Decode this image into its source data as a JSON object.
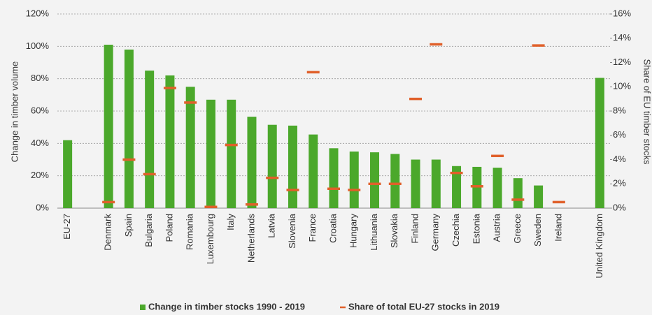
{
  "chart_data": {
    "type": "bar_marker",
    "y_label": "Change in timber volume",
    "y2_label": "Share of EU timber stocks",
    "categories": [
      "EU-27",
      null,
      "Denmark",
      "Spain",
      "Bulgaria",
      "Poland",
      "Romania",
      "Luxembourg",
      "Italy",
      "Netherlands",
      "Latvia",
      "Slovenia",
      "France",
      "Croatia",
      "Hungary",
      "Lithuania",
      "Slovakia",
      "Finland",
      "Germany",
      "Czechia",
      "Estonia",
      "Austria",
      "Greece",
      "Sweden",
      "Ireland",
      null,
      "United Kingdom"
    ],
    "series": [
      {
        "name": "Change in timber stocks 1990 - 2019",
        "color": "#4ba82b",
        "values": [
          42,
          null,
          101,
          98,
          85,
          82,
          75,
          67,
          67,
          56.5,
          51.5,
          51,
          45.5,
          37,
          35,
          34.5,
          33.5,
          30,
          30,
          26,
          25.5,
          25,
          18.5,
          14,
          null,
          null,
          80.5
        ]
      },
      {
        "name": "Share of total EU-27 stocks in 2019",
        "color": "#e0602a",
        "axis": "y2",
        "values": [
          null,
          null,
          0.5,
          4.0,
          2.8,
          9.9,
          8.7,
          0.1,
          5.2,
          0.3,
          2.5,
          1.5,
          11.2,
          1.6,
          1.5,
          2.0,
          2.0,
          9.0,
          13.5,
          2.9,
          1.8,
          4.3,
          0.7,
          13.4,
          0.5,
          null,
          null
        ]
      }
    ],
    "ylim": [
      0,
      120
    ],
    "yticks": [
      {
        "value": 0,
        "label": "0%"
      },
      {
        "value": 20,
        "label": "20%"
      },
      {
        "value": 40,
        "label": "40%"
      },
      {
        "value": 60,
        "label": "60%"
      },
      {
        "value": 80,
        "label": "80%"
      },
      {
        "value": 100,
        "label": "100%"
      },
      {
        "value": 120,
        "label": "120%"
      }
    ],
    "y2lim": [
      0,
      16
    ],
    "y2ticks": [
      {
        "value": 0,
        "label": "0%"
      },
      {
        "value": 2,
        "label": "2%"
      },
      {
        "value": 4,
        "label": "4%"
      },
      {
        "value": 6,
        "label": "6%"
      },
      {
        "value": 8,
        "label": "8%"
      },
      {
        "value": 10,
        "label": "10%"
      },
      {
        "value": 12,
        "label": "12%"
      },
      {
        "value": 14,
        "label": "14%"
      },
      {
        "value": 16,
        "label": "16%"
      }
    ],
    "grid": true
  }
}
